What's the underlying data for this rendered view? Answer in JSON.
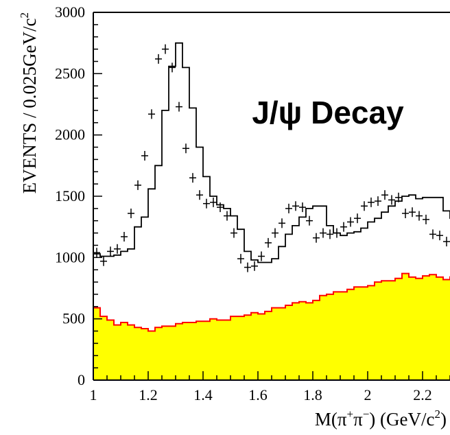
{
  "chart_data": {
    "type": "histogram",
    "title": "",
    "annotation": "J/ψ Decay",
    "xlabel_parts": {
      "m": "M(π",
      "plus": "+",
      "pi": "π",
      "minus": "−",
      "unit": ") (GeV/c",
      "exp": "2",
      "close": ")"
    },
    "ylabel_parts": {
      "main": "EVENTS / 0.025GeV/c",
      "exp": "2"
    },
    "xlim": [
      1.0,
      2.3
    ],
    "ylim": [
      0,
      3000
    ],
    "xticks": [
      "1",
      "1.2",
      "1.4",
      "1.6",
      "1.8",
      "2",
      "2.2"
    ],
    "yticks": [
      "0",
      "500",
      "1000",
      "1500",
      "2000",
      "2500",
      "3000"
    ],
    "bin_width": 0.025,
    "background": {
      "name": "background",
      "fill_color": "#ffff00",
      "edge_color": "#ff0000",
      "values": [
        590,
        520,
        490,
        450,
        470,
        450,
        430,
        420,
        400,
        430,
        440,
        440,
        460,
        470,
        470,
        480,
        480,
        500,
        490,
        490,
        520,
        520,
        530,
        550,
        540,
        560,
        590,
        590,
        610,
        630,
        640,
        630,
        650,
        690,
        700,
        720,
        720,
        740,
        760,
        760,
        770,
        800,
        810,
        810,
        830,
        870,
        840,
        830,
        850,
        860,
        840,
        820,
        840,
        820
      ]
    },
    "fit": {
      "name": "fit",
      "line_color": "#000000",
      "values": [
        1030,
        1010,
        1010,
        1020,
        1050,
        1070,
        1250,
        1330,
        1560,
        1750,
        2200,
        2560,
        2750,
        2550,
        2220,
        1900,
        1660,
        1500,
        1430,
        1400,
        1340,
        1230,
        1050,
        980,
        960,
        960,
        990,
        1090,
        1190,
        1260,
        1330,
        1400,
        1420,
        1420,
        1260,
        1200,
        1180,
        1200,
        1210,
        1240,
        1290,
        1320,
        1370,
        1420,
        1460,
        1500,
        1510,
        1480,
        1490,
        1490,
        1490,
        1380,
        1320,
        1270
      ]
    },
    "data_points": {
      "name": "data",
      "marker_color": "#000000",
      "x": [
        1.0125,
        1.0375,
        1.0625,
        1.0875,
        1.1125,
        1.1375,
        1.1625,
        1.1875,
        1.2125,
        1.2375,
        1.2625,
        1.2875,
        1.3125,
        1.3375,
        1.3625,
        1.3875,
        1.4125,
        1.4375,
        1.4625,
        1.4875,
        1.5125,
        1.5375,
        1.5625,
        1.5875,
        1.6125,
        1.6375,
        1.6625,
        1.6875,
        1.7125,
        1.7375,
        1.7625,
        1.7875,
        1.8125,
        1.8375,
        1.8625,
        1.8875,
        1.9125,
        1.9375,
        1.9625,
        1.9875,
        2.0125,
        2.0375,
        2.0625,
        2.0875,
        2.1125,
        2.1375,
        2.1625,
        2.1875,
        2.2125,
        2.2375,
        2.2625,
        2.2875
      ],
      "y": [
        1040,
        970,
        1050,
        1070,
        1170,
        1360,
        1590,
        1830,
        2170,
        2620,
        2700,
        2550,
        2230,
        1890,
        1650,
        1510,
        1440,
        1450,
        1410,
        1340,
        1200,
        990,
        920,
        930,
        1010,
        1120,
        1200,
        1280,
        1400,
        1420,
        1410,
        1300,
        1160,
        1200,
        1190,
        1200,
        1250,
        1290,
        1320,
        1420,
        1450,
        1460,
        1510,
        1470,
        1490,
        1360,
        1370,
        1340,
        1310,
        1190,
        1180,
        1130
      ]
    }
  }
}
